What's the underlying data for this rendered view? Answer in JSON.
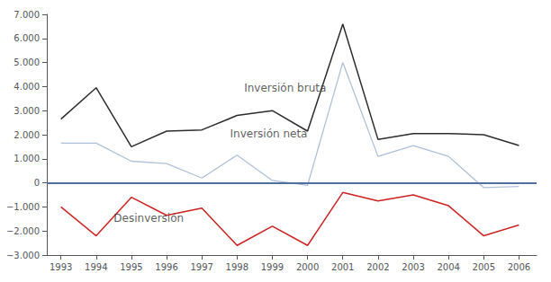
{
  "chart_data": {
    "type": "line",
    "x": [
      1993,
      1994,
      1995,
      1996,
      1997,
      1998,
      1999,
      2000,
      2001,
      2002,
      2003,
      2004,
      2005,
      2006
    ],
    "series": [
      {
        "name": "Inversión bruta",
        "color": "#2d2d2d",
        "values": [
          2650,
          3950,
          1500,
          2150,
          2200,
          2800,
          3000,
          2150,
          6600,
          1800,
          2050,
          2050,
          2000,
          1550
        ]
      },
      {
        "name": "Inversión neta",
        "color": "#b0c0d8",
        "values": [
          1650,
          1650,
          900,
          800,
          200,
          1150,
          100,
          -100,
          5000,
          1100,
          1550,
          1100,
          -200,
          -150
        ]
      },
      {
        "name": "Desinversión",
        "color": "#cc2222",
        "values": [
          -1000,
          -2200,
          -600,
          -1350,
          -1050,
          -2600,
          -1800,
          -2600,
          -400,
          -750,
          -500,
          -950,
          -2200,
          -1750
        ]
      }
    ],
    "annotations": [
      {
        "text": "Inversión bruta",
        "x": 1998.2,
        "y": 3700,
        "color": "#333333"
      },
      {
        "text": "Inversión neta",
        "x": 1997.8,
        "y": 1800,
        "color": "#333333"
      },
      {
        "text": "Desinversión",
        "x": 1994.5,
        "y": -1700,
        "color": "#333333"
      }
    ],
    "hline": {
      "y": 0,
      "color": "#5070a0"
    },
    "xlim": [
      1992.6,
      2006.5
    ],
    "xticks": [
      1993,
      1994,
      1995,
      1996,
      1997,
      1998,
      1999,
      2000,
      2001,
      2002,
      2003,
      2004,
      2005,
      2006
    ],
    "ylim": [
      -3000,
      7000
    ],
    "yticks": [
      {
        "value": -3000,
        "label": "−3.000"
      },
      {
        "value": -2000,
        "label": "−2.000"
      },
      {
        "value": -1000,
        "label": "−1.000"
      },
      0,
      {
        "value": 1000,
        "label": "1.000"
      },
      {
        "value": 2000,
        "label": "2.000"
      },
      {
        "value": 3000,
        "label": "3.000"
      },
      {
        "value": 4000,
        "label": "4.000"
      },
      {
        "value": 5000,
        "label": "5.000"
      },
      {
        "value": 6000,
        "label": "6.000"
      },
      {
        "value": 7000,
        "label": "7.000"
      }
    ],
    "grid": false
  }
}
